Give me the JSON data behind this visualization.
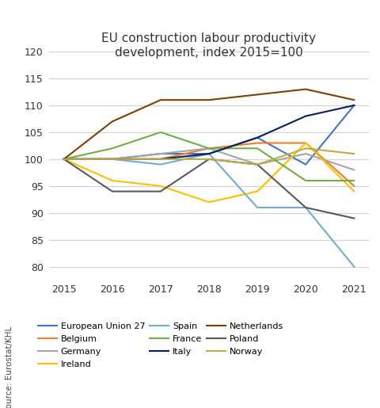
{
  "title": "EU construction labour productivity\ndevelopment, index 2015=100",
  "years": [
    2015,
    2016,
    2017,
    2018,
    2019,
    2020,
    2021
  ],
  "series": {
    "European Union 27": {
      "values": [
        100,
        100,
        101,
        101,
        104,
        99,
        110
      ],
      "color": "#4472C4",
      "linewidth": 1.5
    },
    "Belgium": {
      "values": [
        100,
        100,
        100,
        102,
        103,
        103,
        95
      ],
      "color": "#ED7D31",
      "linewidth": 1.5
    },
    "Germany": {
      "values": [
        100,
        100,
        101,
        102,
        99,
        101,
        98
      ],
      "color": "#A5A5A5",
      "linewidth": 1.5
    },
    "Ireland": {
      "values": [
        100,
        96,
        95,
        92,
        94,
        103,
        94
      ],
      "color": "#FFC000",
      "linewidth": 1.5
    },
    "Spain": {
      "values": [
        100,
        100,
        99,
        101,
        91,
        91,
        80
      ],
      "color": "#70AECE",
      "linewidth": 1.5
    },
    "France": {
      "values": [
        100,
        102,
        105,
        102,
        102,
        96,
        96
      ],
      "color": "#70AD47",
      "linewidth": 1.5
    },
    "Italy": {
      "values": [
        100,
        100,
        100,
        101,
        104,
        108,
        110
      ],
      "color": "#002060",
      "linewidth": 1.5
    },
    "Netherlands": {
      "values": [
        100,
        107,
        111,
        111,
        112,
        113,
        111
      ],
      "color": "#7B3F00",
      "linewidth": 1.5
    },
    "Poland": {
      "values": [
        100,
        94,
        94,
        100,
        99,
        91,
        89
      ],
      "color": "#595959",
      "linewidth": 1.5
    },
    "Norway": {
      "values": [
        100,
        100,
        100,
        100,
        99,
        102,
        101
      ],
      "color": "#BFAB4A",
      "linewidth": 1.5
    }
  },
  "ylim": [
    78,
    122
  ],
  "yticks": [
    80,
    85,
    90,
    95,
    100,
    105,
    110,
    115,
    120
  ],
  "source_text": "Source: Eurostat/KHL",
  "legend_order": [
    "European Union 27",
    "Belgium",
    "Germany",
    "Ireland",
    "Spain",
    "France",
    "Italy",
    "Netherlands",
    "Poland",
    "Norway"
  ],
  "background_color": "#FFFFFF",
  "grid_color": "#D3D3D3"
}
